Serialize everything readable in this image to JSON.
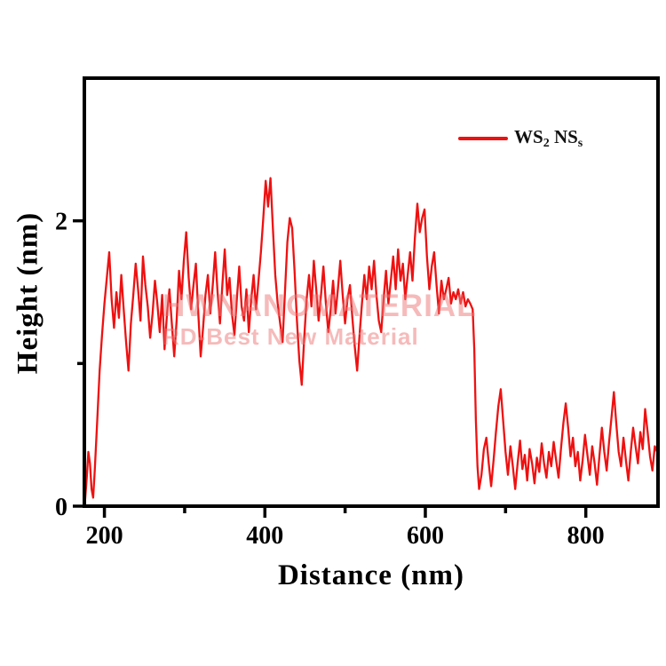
{
  "chart_data": {
    "type": "line",
    "title": "",
    "xlabel": "Distance (nm)",
    "ylabel": "Height (nm)",
    "xlim": [
      175,
      890
    ],
    "ylim": [
      0,
      3
    ],
    "xticks_major": [
      200,
      400,
      600,
      800
    ],
    "xticks_minor": [
      300,
      500,
      700
    ],
    "yticks_major": [
      0,
      2
    ],
    "yticks_minor": [
      1
    ],
    "grid": false,
    "legend_position": "upper right",
    "legend_label": "WS2 NSs",
    "series": [
      {
        "name": "WS2 NSs",
        "color": "#ee1111",
        "points": [
          [
            176,
            0.05
          ],
          [
            178,
            0.2
          ],
          [
            180,
            0.38
          ],
          [
            182,
            0.3
          ],
          [
            184,
            0.12
          ],
          [
            186,
            0.06
          ],
          [
            188,
            0.25
          ],
          [
            191,
            0.6
          ],
          [
            194,
            0.95
          ],
          [
            197,
            1.2
          ],
          [
            200,
            1.42
          ],
          [
            203,
            1.6
          ],
          [
            206,
            1.78
          ],
          [
            209,
            1.45
          ],
          [
            212,
            1.25
          ],
          [
            215,
            1.5
          ],
          [
            218,
            1.32
          ],
          [
            221,
            1.62
          ],
          [
            224,
            1.38
          ],
          [
            227,
            1.15
          ],
          [
            230,
            0.95
          ],
          [
            233,
            1.28
          ],
          [
            236,
            1.48
          ],
          [
            239,
            1.7
          ],
          [
            242,
            1.52
          ],
          [
            245,
            1.3
          ],
          [
            248,
            1.75
          ],
          [
            251,
            1.55
          ],
          [
            254,
            1.4
          ],
          [
            257,
            1.18
          ],
          [
            260,
            1.35
          ],
          [
            263,
            1.58
          ],
          [
            266,
            1.42
          ],
          [
            269,
            1.22
          ],
          [
            272,
            1.48
          ],
          [
            275,
            1.1
          ],
          [
            278,
            1.35
          ],
          [
            281,
            1.52
          ],
          [
            284,
            1.28
          ],
          [
            287,
            1.05
          ],
          [
            290,
            1.3
          ],
          [
            293,
            1.65
          ],
          [
            296,
            1.45
          ],
          [
            299,
            1.72
          ],
          [
            302,
            1.92
          ],
          [
            305,
            1.6
          ],
          [
            308,
            1.38
          ],
          [
            311,
            1.55
          ],
          [
            314,
            1.7
          ],
          [
            317,
            1.35
          ],
          [
            320,
            1.05
          ],
          [
            323,
            1.25
          ],
          [
            326,
            1.48
          ],
          [
            329,
            1.62
          ],
          [
            332,
            1.35
          ],
          [
            335,
            1.55
          ],
          [
            338,
            1.78
          ],
          [
            341,
            1.5
          ],
          [
            344,
            1.28
          ],
          [
            347,
            1.55
          ],
          [
            350,
            1.8
          ],
          [
            353,
            1.48
          ],
          [
            356,
            1.6
          ],
          [
            359,
            1.35
          ],
          [
            362,
            1.2
          ],
          [
            365,
            1.45
          ],
          [
            368,
            1.68
          ],
          [
            371,
            1.4
          ],
          [
            374,
            1.3
          ],
          [
            377,
            1.52
          ],
          [
            380,
            1.22
          ],
          [
            383,
            1.45
          ],
          [
            386,
            1.62
          ],
          [
            389,
            1.38
          ],
          [
            392,
            1.58
          ],
          [
            395,
            1.78
          ],
          [
            398,
            2.02
          ],
          [
            401,
            2.28
          ],
          [
            404,
            2.1
          ],
          [
            407,
            2.3
          ],
          [
            410,
            1.95
          ],
          [
            413,
            1.62
          ],
          [
            416,
            1.42
          ],
          [
            419,
            1.28
          ],
          [
            422,
            1.15
          ],
          [
            425,
            1.5
          ],
          [
            428,
            1.85
          ],
          [
            431,
            2.02
          ],
          [
            434,
            1.95
          ],
          [
            437,
            1.65
          ],
          [
            440,
            1.3
          ],
          [
            443,
            1.02
          ],
          [
            446,
            0.85
          ],
          [
            449,
            1.18
          ],
          [
            452,
            1.45
          ],
          [
            455,
            1.62
          ],
          [
            458,
            1.4
          ],
          [
            461,
            1.72
          ],
          [
            464,
            1.52
          ],
          [
            467,
            1.3
          ],
          [
            470,
            1.48
          ],
          [
            473,
            1.68
          ],
          [
            476,
            1.42
          ],
          [
            479,
            1.22
          ],
          [
            482,
            1.38
          ],
          [
            485,
            1.58
          ],
          [
            488,
            1.35
          ],
          [
            491,
            1.52
          ],
          [
            494,
            1.72
          ],
          [
            497,
            1.48
          ],
          [
            500,
            1.28
          ],
          [
            503,
            1.45
          ],
          [
            506,
            1.55
          ],
          [
            509,
            1.32
          ],
          [
            512,
            1.12
          ],
          [
            515,
            0.95
          ],
          [
            518,
            1.2
          ],
          [
            521,
            1.42
          ],
          [
            524,
            1.62
          ],
          [
            527,
            1.45
          ],
          [
            530,
            1.68
          ],
          [
            533,
            1.52
          ],
          [
            536,
            1.72
          ],
          [
            539,
            1.48
          ],
          [
            542,
            1.3
          ],
          [
            545,
            1.22
          ],
          [
            548,
            1.45
          ],
          [
            551,
            1.65
          ],
          [
            554,
            1.42
          ],
          [
            557,
            1.58
          ],
          [
            560,
            1.75
          ],
          [
            563,
            1.52
          ],
          [
            566,
            1.8
          ],
          [
            569,
            1.58
          ],
          [
            572,
            1.7
          ],
          [
            575,
            1.45
          ],
          [
            578,
            1.62
          ],
          [
            581,
            1.78
          ],
          [
            584,
            1.58
          ],
          [
            587,
            1.88
          ],
          [
            590,
            2.12
          ],
          [
            593,
            1.92
          ],
          [
            596,
            2.02
          ],
          [
            599,
            2.08
          ],
          [
            602,
            1.75
          ],
          [
            605,
            1.52
          ],
          [
            608,
            1.68
          ],
          [
            611,
            1.78
          ],
          [
            614,
            1.55
          ],
          [
            617,
            1.35
          ],
          [
            620,
            1.58
          ],
          [
            623,
            1.45
          ],
          [
            626,
            1.52
          ],
          [
            629,
            1.6
          ],
          [
            632,
            1.42
          ],
          [
            635,
            1.5
          ],
          [
            638,
            1.45
          ],
          [
            641,
            1.52
          ],
          [
            644,
            1.42
          ],
          [
            647,
            1.5
          ],
          [
            650,
            1.4
          ],
          [
            653,
            1.45
          ],
          [
            656,
            1.42
          ],
          [
            659,
            1.38
          ],
          [
            661,
            1.1
          ],
          [
            663,
            0.6
          ],
          [
            665,
            0.28
          ],
          [
            667,
            0.12
          ],
          [
            670,
            0.22
          ],
          [
            673,
            0.4
          ],
          [
            676,
            0.48
          ],
          [
            679,
            0.3
          ],
          [
            682,
            0.14
          ],
          [
            685,
            0.32
          ],
          [
            688,
            0.52
          ],
          [
            691,
            0.7
          ],
          [
            694,
            0.82
          ],
          [
            697,
            0.6
          ],
          [
            700,
            0.38
          ],
          [
            703,
            0.22
          ],
          [
            706,
            0.42
          ],
          [
            709,
            0.28
          ],
          [
            712,
            0.12
          ],
          [
            715,
            0.3
          ],
          [
            718,
            0.46
          ],
          [
            721,
            0.26
          ],
          [
            724,
            0.36
          ],
          [
            727,
            0.18
          ],
          [
            730,
            0.4
          ],
          [
            733,
            0.3
          ],
          [
            736,
            0.16
          ],
          [
            739,
            0.34
          ],
          [
            742,
            0.24
          ],
          [
            745,
            0.44
          ],
          [
            748,
            0.3
          ],
          [
            751,
            0.2
          ],
          [
            754,
            0.38
          ],
          [
            757,
            0.28
          ],
          [
            760,
            0.45
          ],
          [
            763,
            0.32
          ],
          [
            766,
            0.2
          ],
          [
            769,
            0.4
          ],
          [
            772,
            0.58
          ],
          [
            775,
            0.72
          ],
          [
            778,
            0.55
          ],
          [
            781,
            0.35
          ],
          [
            784,
            0.48
          ],
          [
            787,
            0.28
          ],
          [
            790,
            0.38
          ],
          [
            793,
            0.18
          ],
          [
            796,
            0.32
          ],
          [
            799,
            0.5
          ],
          [
            802,
            0.36
          ],
          [
            805,
            0.22
          ],
          [
            808,
            0.42
          ],
          [
            811,
            0.3
          ],
          [
            814,
            0.15
          ],
          [
            817,
            0.35
          ],
          [
            820,
            0.55
          ],
          [
            823,
            0.38
          ],
          [
            826,
            0.25
          ],
          [
            829,
            0.45
          ],
          [
            832,
            0.62
          ],
          [
            835,
            0.8
          ],
          [
            838,
            0.58
          ],
          [
            841,
            0.38
          ],
          [
            844,
            0.28
          ],
          [
            847,
            0.48
          ],
          [
            850,
            0.32
          ],
          [
            853,
            0.18
          ],
          [
            856,
            0.38
          ],
          [
            859,
            0.55
          ],
          [
            862,
            0.42
          ],
          [
            865,
            0.3
          ],
          [
            868,
            0.52
          ],
          [
            871,
            0.4
          ],
          [
            874,
            0.68
          ],
          [
            877,
            0.52
          ],
          [
            880,
            0.35
          ],
          [
            883,
            0.25
          ],
          [
            886,
            0.42
          ],
          [
            889,
            0.38
          ]
        ]
      }
    ]
  },
  "legend": {
    "part_ws": "WS",
    "part_sub2": "2",
    "part_ns": " NS",
    "part_subs": "s"
  },
  "watermark": {
    "line1": "HWNANOMATERIAL",
    "line2": "RD-Best New Material"
  },
  "colors": {
    "trace": "#ee1111",
    "axis": "#000000",
    "background": "#ffffff",
    "watermark": "#ee7878"
  }
}
